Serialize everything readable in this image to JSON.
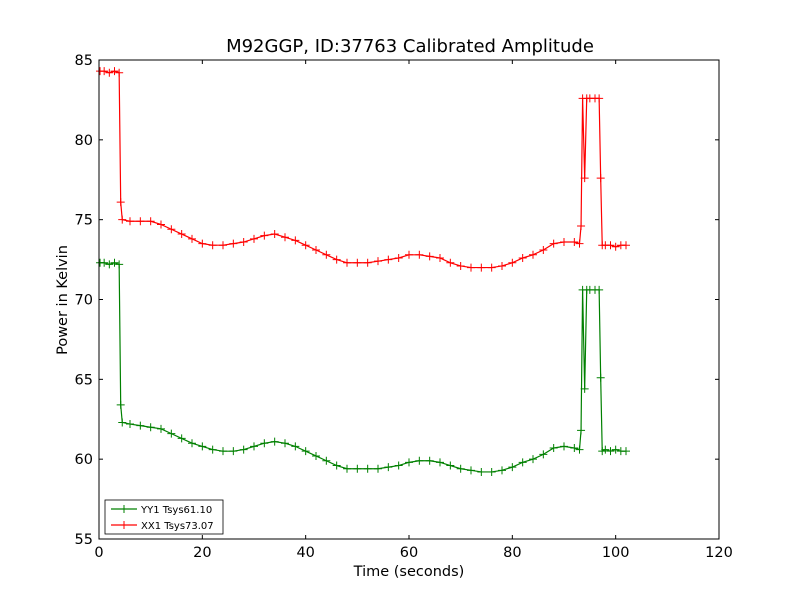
{
  "chart_data": {
    "type": "line",
    "title": "M92GGP, ID:37763 Calibrated Amplitude",
    "xlabel": "Time (seconds)",
    "ylabel": "Power in Kelvin",
    "xlim": [
      0,
      120
    ],
    "ylim": [
      55,
      85
    ],
    "xticks": [
      0,
      20,
      40,
      60,
      80,
      100,
      120
    ],
    "yticks": [
      55,
      60,
      65,
      70,
      75,
      80,
      85
    ],
    "grid": false,
    "legend_position": "lower-left",
    "series": [
      {
        "name": "YY1 Tsys61.10",
        "color": "#008000",
        "marker": "+",
        "points": [
          [
            0.2,
            72.3
          ],
          [
            1.0,
            72.3
          ],
          [
            2.0,
            72.2
          ],
          [
            3.0,
            72.3
          ],
          [
            3.9,
            72.2
          ],
          [
            4.2,
            63.4
          ],
          [
            4.5,
            62.3
          ],
          [
            6.0,
            62.2
          ],
          [
            8.0,
            62.1
          ],
          [
            10.0,
            62.0
          ],
          [
            12.0,
            61.9
          ],
          [
            14.0,
            61.6
          ],
          [
            16.0,
            61.3
          ],
          [
            18.0,
            61.0
          ],
          [
            20.0,
            60.8
          ],
          [
            22.0,
            60.6
          ],
          [
            24.0,
            60.5
          ],
          [
            26.0,
            60.5
          ],
          [
            28.0,
            60.6
          ],
          [
            30.0,
            60.8
          ],
          [
            32.0,
            61.0
          ],
          [
            34.0,
            61.1
          ],
          [
            36.0,
            61.0
          ],
          [
            38.0,
            60.8
          ],
          [
            40.0,
            60.5
          ],
          [
            42.0,
            60.2
          ],
          [
            44.0,
            59.9
          ],
          [
            46.0,
            59.6
          ],
          [
            48.0,
            59.4
          ],
          [
            50.0,
            59.4
          ],
          [
            52.0,
            59.4
          ],
          [
            54.0,
            59.4
          ],
          [
            56.0,
            59.5
          ],
          [
            58.0,
            59.6
          ],
          [
            60.0,
            59.8
          ],
          [
            62.0,
            59.9
          ],
          [
            64.0,
            59.9
          ],
          [
            66.0,
            59.8
          ],
          [
            68.0,
            59.6
          ],
          [
            70.0,
            59.4
          ],
          [
            72.0,
            59.3
          ],
          [
            74.0,
            59.2
          ],
          [
            76.0,
            59.2
          ],
          [
            78.0,
            59.3
          ],
          [
            80.0,
            59.5
          ],
          [
            82.0,
            59.8
          ],
          [
            84.0,
            60.0
          ],
          [
            86.0,
            60.3
          ],
          [
            88.0,
            60.7
          ],
          [
            90.0,
            60.8
          ],
          [
            92.0,
            60.7
          ],
          [
            93.0,
            60.6
          ],
          [
            93.3,
            61.8
          ],
          [
            93.6,
            70.6
          ],
          [
            94.0,
            64.4
          ],
          [
            94.4,
            70.6
          ],
          [
            95.0,
            70.6
          ],
          [
            96.0,
            70.6
          ],
          [
            96.8,
            70.6
          ],
          [
            97.1,
            65.1
          ],
          [
            97.4,
            60.5
          ],
          [
            98.0,
            60.6
          ],
          [
            99.0,
            60.5
          ],
          [
            100.0,
            60.6
          ],
          [
            101.0,
            60.5
          ],
          [
            102.0,
            60.5
          ]
        ]
      },
      {
        "name": "XX1 Tsys73.07",
        "color": "#ff0000",
        "marker": "+",
        "points": [
          [
            0.2,
            84.3
          ],
          [
            1.0,
            84.3
          ],
          [
            2.0,
            84.2
          ],
          [
            3.0,
            84.3
          ],
          [
            3.9,
            84.2
          ],
          [
            4.2,
            76.1
          ],
          [
            4.5,
            75.0
          ],
          [
            6.0,
            74.9
          ],
          [
            8.0,
            74.9
          ],
          [
            10.0,
            74.9
          ],
          [
            12.0,
            74.7
          ],
          [
            14.0,
            74.4
          ],
          [
            16.0,
            74.1
          ],
          [
            18.0,
            73.8
          ],
          [
            20.0,
            73.5
          ],
          [
            22.0,
            73.4
          ],
          [
            24.0,
            73.4
          ],
          [
            26.0,
            73.5
          ],
          [
            28.0,
            73.6
          ],
          [
            30.0,
            73.8
          ],
          [
            32.0,
            74.0
          ],
          [
            34.0,
            74.1
          ],
          [
            36.0,
            73.9
          ],
          [
            38.0,
            73.7
          ],
          [
            40.0,
            73.4
          ],
          [
            42.0,
            73.1
          ],
          [
            44.0,
            72.8
          ],
          [
            46.0,
            72.5
          ],
          [
            48.0,
            72.3
          ],
          [
            50.0,
            72.3
          ],
          [
            52.0,
            72.3
          ],
          [
            54.0,
            72.4
          ],
          [
            56.0,
            72.5
          ],
          [
            58.0,
            72.6
          ],
          [
            60.0,
            72.8
          ],
          [
            62.0,
            72.8
          ],
          [
            64.0,
            72.7
          ],
          [
            66.0,
            72.6
          ],
          [
            68.0,
            72.3
          ],
          [
            70.0,
            72.1
          ],
          [
            72.0,
            72.0
          ],
          [
            74.0,
            72.0
          ],
          [
            76.0,
            72.0
          ],
          [
            78.0,
            72.1
          ],
          [
            80.0,
            72.3
          ],
          [
            82.0,
            72.6
          ],
          [
            84.0,
            72.8
          ],
          [
            86.0,
            73.1
          ],
          [
            88.0,
            73.5
          ],
          [
            90.0,
            73.6
          ],
          [
            92.0,
            73.6
          ],
          [
            93.0,
            73.5
          ],
          [
            93.3,
            74.6
          ],
          [
            93.6,
            82.6
          ],
          [
            94.0,
            77.6
          ],
          [
            94.4,
            82.6
          ],
          [
            95.0,
            82.6
          ],
          [
            96.0,
            82.6
          ],
          [
            96.8,
            82.6
          ],
          [
            97.1,
            77.6
          ],
          [
            97.4,
            73.4
          ],
          [
            98.0,
            73.4
          ],
          [
            99.0,
            73.4
          ],
          [
            100.0,
            73.3
          ],
          [
            101.0,
            73.4
          ],
          [
            102.0,
            73.4
          ]
        ]
      }
    ]
  }
}
